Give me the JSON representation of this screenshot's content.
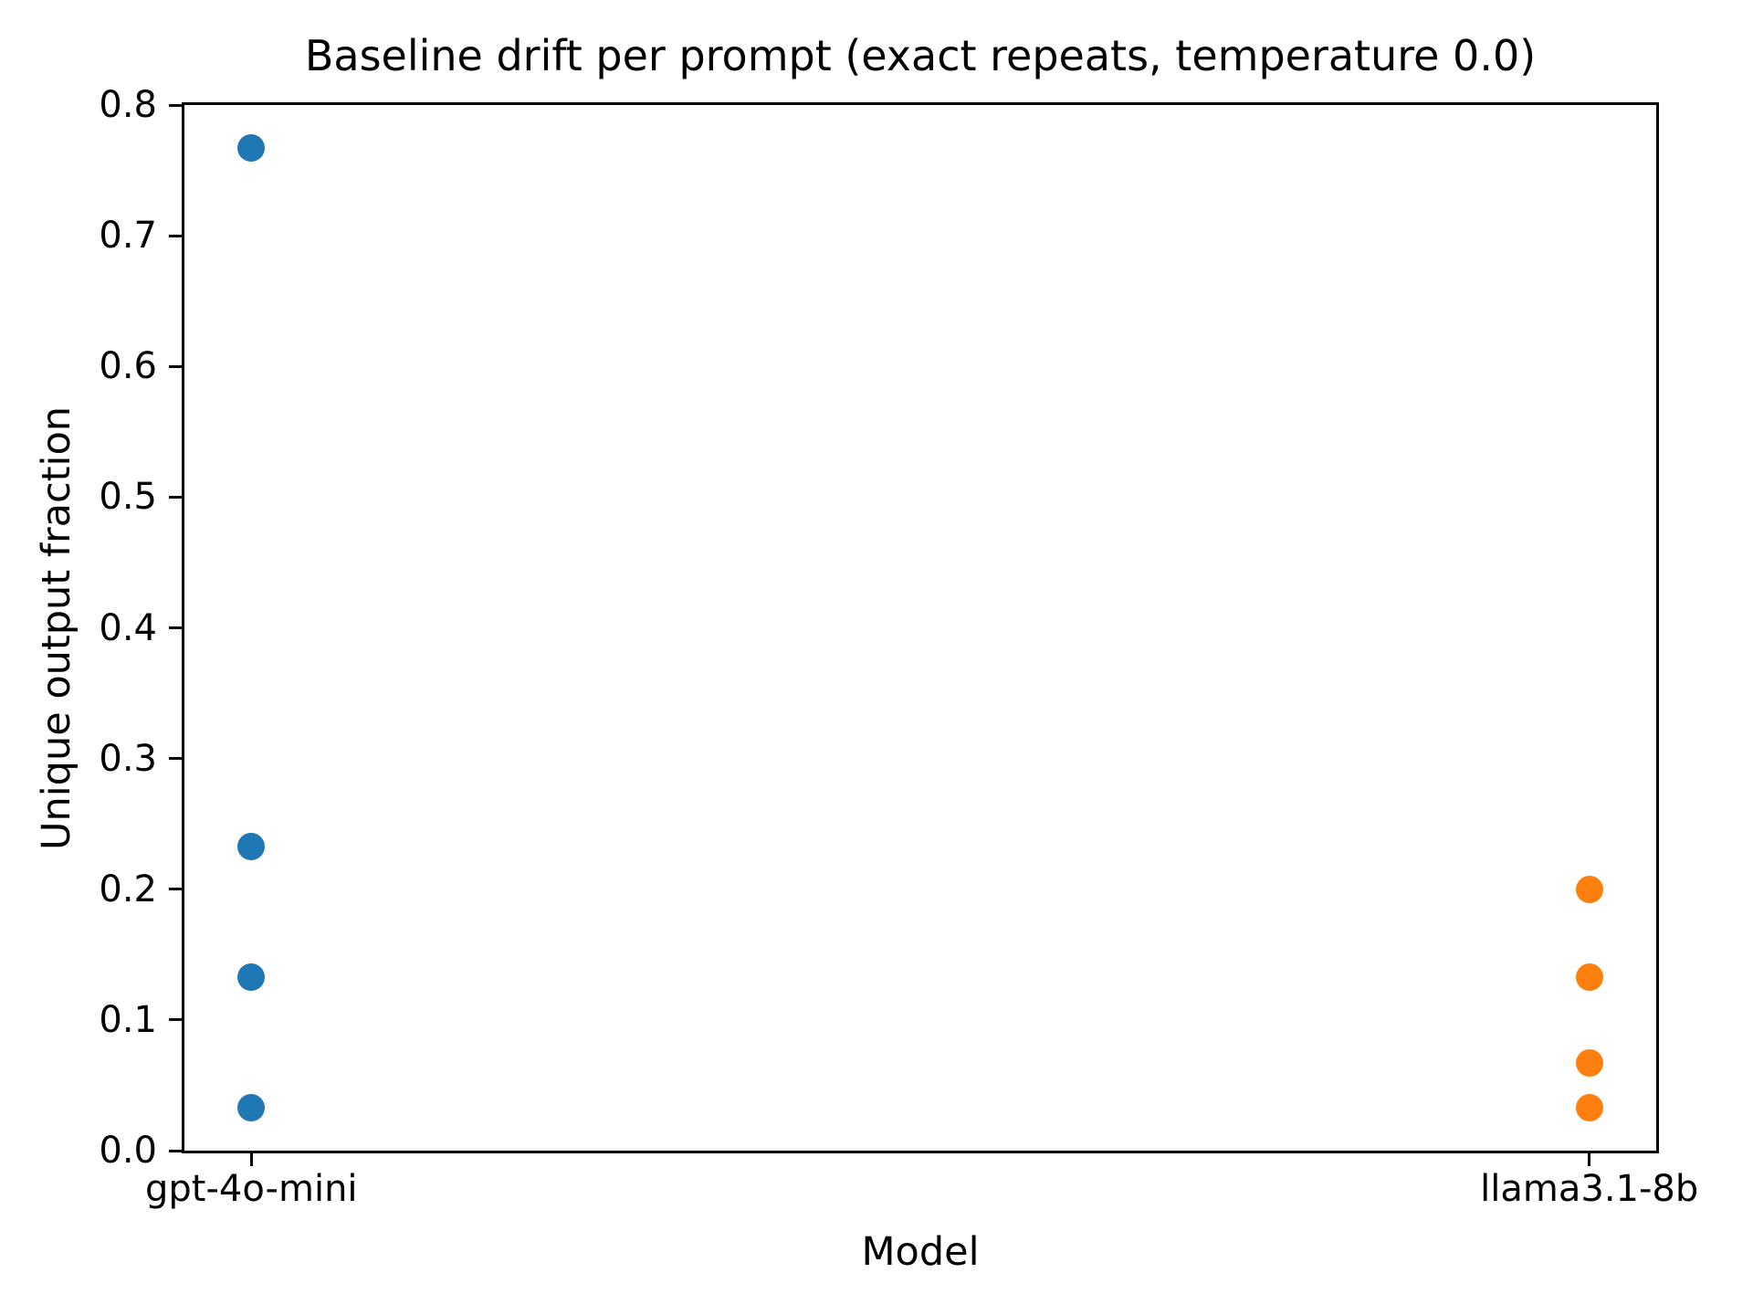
{
  "chart_data": {
    "type": "scatter",
    "title": "Baseline drift per prompt (exact repeats, temperature 0.0)",
    "xlabel": "Model",
    "ylabel": "Unique output fraction",
    "categories": [
      "gpt-4o-mini",
      "llama3.1-8b"
    ],
    "series": [
      {
        "name": "gpt-4o-mini",
        "color": "#1f77b4",
        "marker": "circle",
        "values": [
          0.767,
          0.233,
          0.133,
          0.033
        ]
      },
      {
        "name": "llama3.1-8b",
        "color": "#ff7f0e",
        "marker": "circle",
        "values": [
          0.2,
          0.133,
          0.067,
          0.033
        ]
      }
    ],
    "ylim": [
      0.0,
      0.8
    ],
    "yticks": [
      0.0,
      0.1,
      0.2,
      0.3,
      0.4,
      0.5,
      0.6,
      0.7,
      0.8
    ],
    "ytick_decimals": 1,
    "xlim": [
      -0.05,
      1.05
    ],
    "grid": false,
    "legend": "none",
    "background_color": "#ffffff",
    "spine_color": "#000000",
    "text_color": "#000000"
  }
}
